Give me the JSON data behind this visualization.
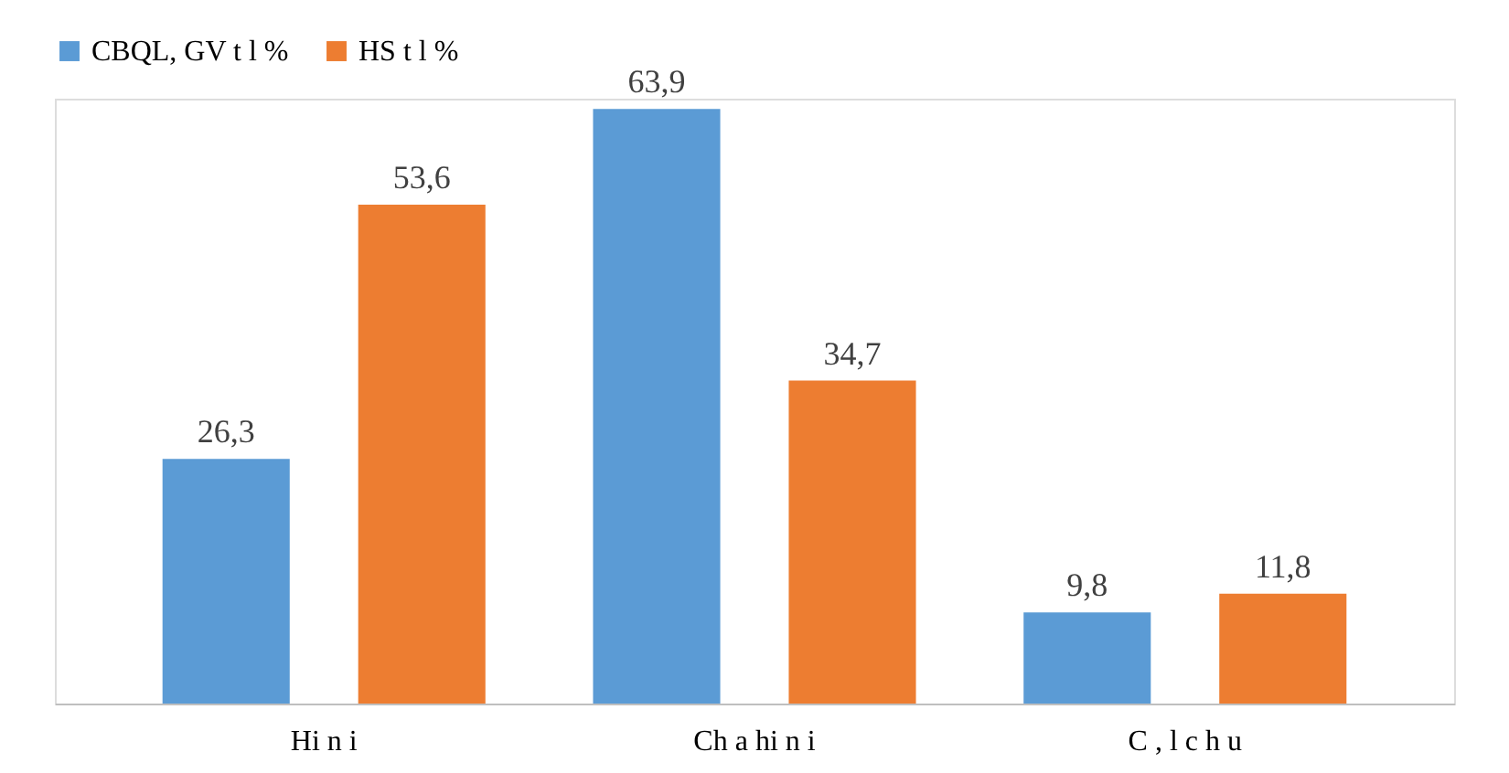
{
  "chart_data": {
    "type": "bar",
    "categories": [
      "Hi n  i",
      "Ch a hi n  i",
      "C , l c h u"
    ],
    "series": [
      {
        "name": "CBQL, GV t  l  %",
        "color": "#5b9bd5",
        "values": [
          26.3,
          63.9,
          9.8
        ],
        "value_labels": [
          "26,3",
          "63,9",
          "9,8"
        ]
      },
      {
        "name": "HS t  l  %",
        "color": "#ed7d31",
        "values": [
          53.6,
          34.7,
          11.8
        ],
        "value_labels": [
          "53,6",
          "34,7",
          "11,8"
        ]
      }
    ],
    "legend": "top",
    "grid": false,
    "tick_labels": "x"
  }
}
